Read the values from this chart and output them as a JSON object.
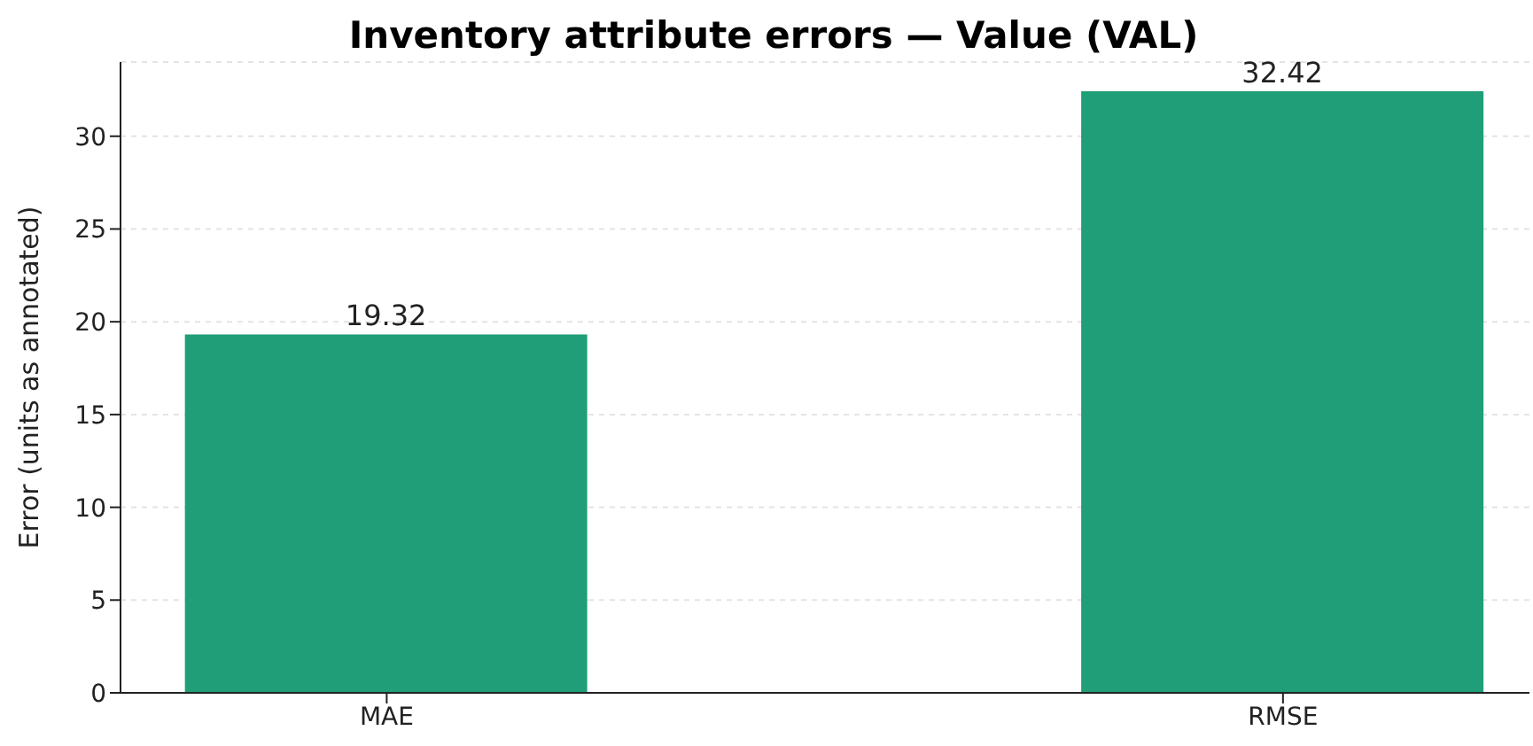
{
  "chart_data": {
    "type": "bar",
    "title": "Inventory attribute errors — Value (VAL)",
    "ylabel": "Error (units as annotated)",
    "categories": [
      "MAE",
      "RMSE"
    ],
    "values": [
      19.32,
      32.42
    ],
    "color": "#1f9e78",
    "ylim": [
      0,
      34
    ],
    "yticks": [
      0,
      5,
      10,
      15,
      20,
      25,
      30
    ],
    "grid": "y",
    "data_labels": true
  }
}
